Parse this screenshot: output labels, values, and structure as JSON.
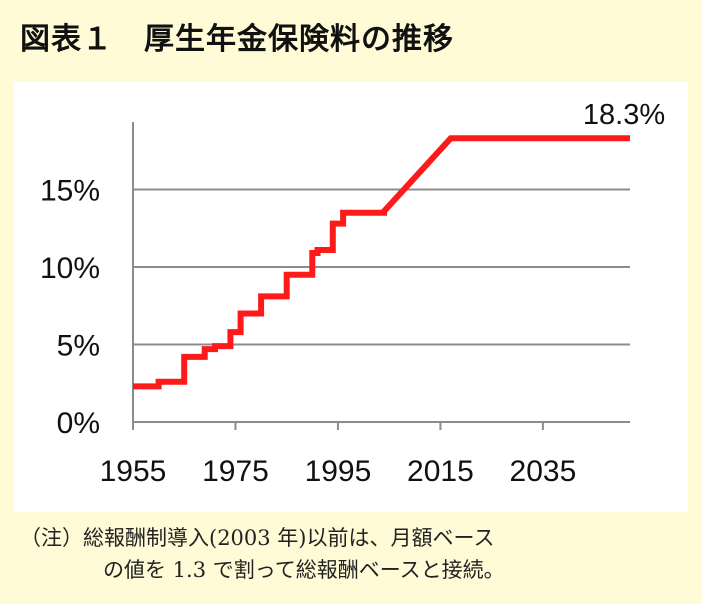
{
  "title": "図表１　厚生年金保険料の推移",
  "note": {
    "label": "（注）",
    "line1": "総報酬制導入(2003 年)以前は、月額ベース",
    "line2": "の値を 1.3 で割って総報酬ベースと接続。"
  },
  "chart_data": {
    "type": "line",
    "title": "厚生年金保険料の推移",
    "xlabel": "",
    "ylabel": "",
    "xlim": [
      1955,
      2052
    ],
    "ylim": [
      0,
      20
    ],
    "x_ticks": [
      "1955",
      "1975",
      "1995",
      "2015",
      "2035"
    ],
    "y_ticks": [
      "0%",
      "5%",
      "10%",
      "15%"
    ],
    "grid": "horizontal",
    "line_color": "#ff1a1a",
    "end_label": "18.3%",
    "series": [
      {
        "step": true,
        "x": [
          1955,
          1960,
          1965,
          1969,
          1971,
          1974,
          1976,
          1980,
          1985,
          1990,
          1991,
          1994,
          1996,
          2004,
          2017,
          2052
        ],
        "y": [
          2.3,
          2.6,
          4.2,
          4.7,
          4.9,
          5.8,
          7.0,
          8.1,
          9.5,
          10.9,
          11.1,
          12.8,
          13.5,
          13.6,
          18.3,
          18.3
        ]
      }
    ]
  }
}
